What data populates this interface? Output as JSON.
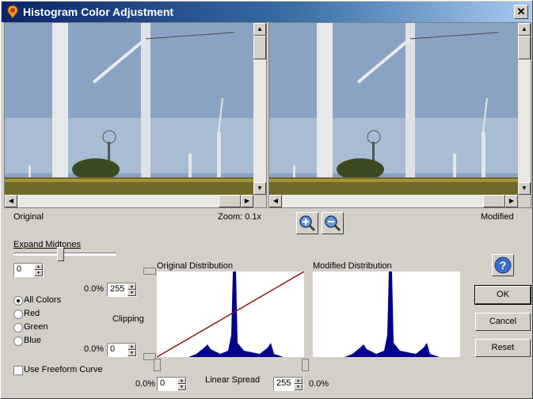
{
  "window": {
    "title": "Histogram Color Adjustment",
    "close_label": "✕"
  },
  "panes": {
    "original_label": "Original",
    "modified_label": "Modified",
    "zoom_label": "Zoom: 0.1x"
  },
  "midtones": {
    "label": "Expand Midtones",
    "value": "0",
    "level": 0.45
  },
  "clipping": {
    "label": "Clipping",
    "high_percent": "0.0%",
    "high_value": "255",
    "low_percent": "0.0%",
    "low_value": "0"
  },
  "channels": {
    "all": "All Colors",
    "red": "Red",
    "green": "Green",
    "blue": "Blue",
    "selected": "all"
  },
  "freeform_label": "Use Freeform Curve",
  "freeform_checked": false,
  "original_distribution_label": "Original Distribution",
  "modified_distribution_label": "Modified Distribution",
  "spread": {
    "label": "Linear Spread",
    "low_percent": "0.0%",
    "low_value": "0",
    "high_value": "255",
    "high_percent": "0.0%"
  },
  "buttons": {
    "ok": "OK",
    "cancel": "Cancel",
    "reset": "Reset"
  },
  "colors": {
    "histogram": "#00008b",
    "curve": "#8b1a1a",
    "title_start": "#0a246a"
  },
  "icons": {
    "help": "help-icon",
    "zoom_in": "zoom-in-icon",
    "zoom_out": "zoom-out-icon"
  }
}
